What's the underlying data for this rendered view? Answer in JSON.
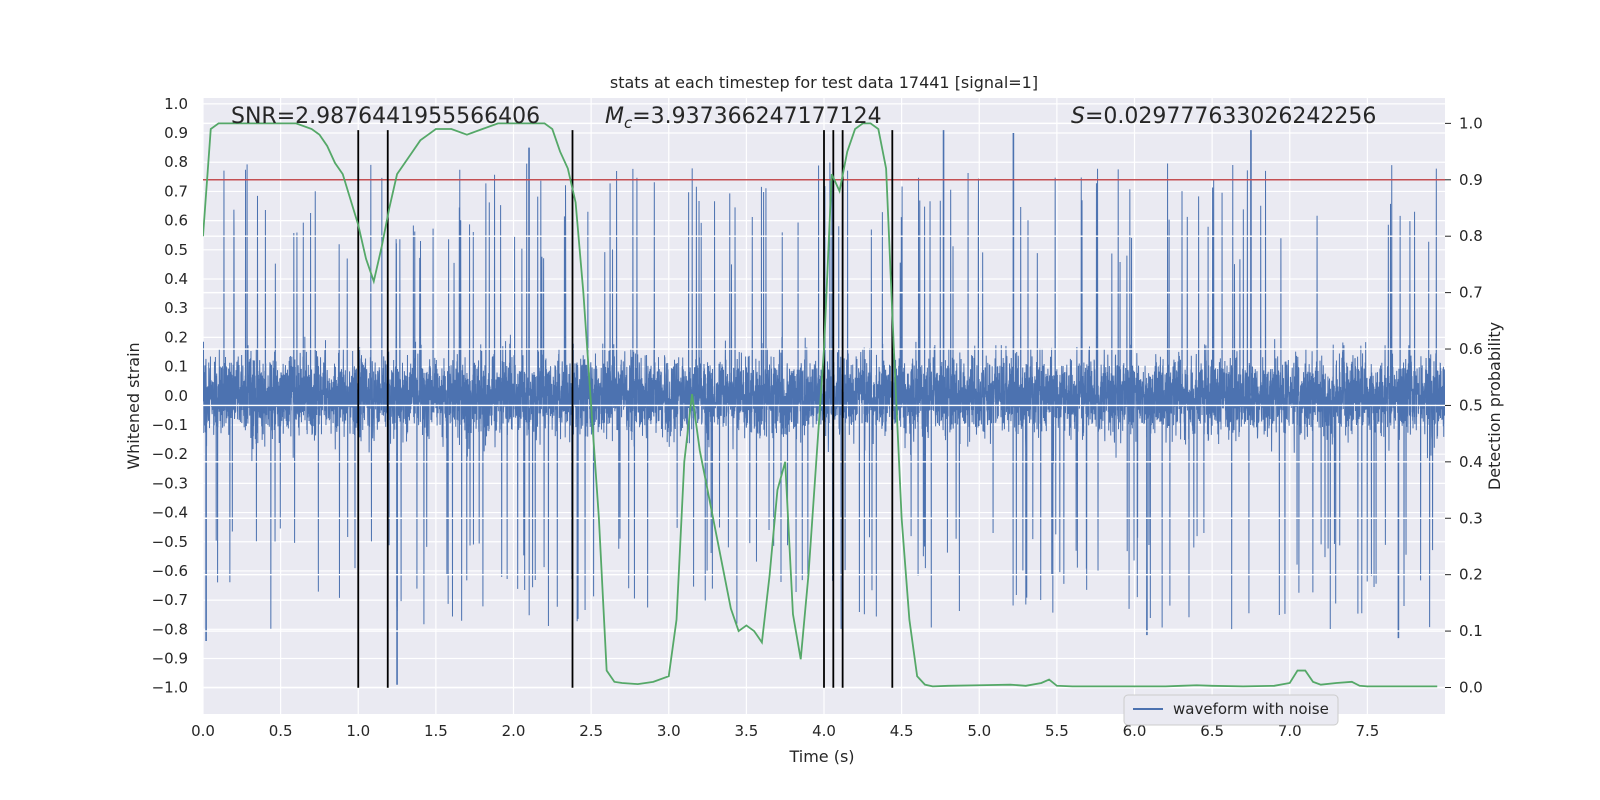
{
  "chart_data": {
    "type": "line",
    "title": "stats at each timestep for test data 17441 [signal=1]",
    "xlabel": "Time (s)",
    "ylabel_left": "Whitened strain",
    "ylabel_right": "Detection probability",
    "xlim": [
      0.0,
      8.0
    ],
    "ylim_left": [
      -1.09,
      1.02
    ],
    "ylim_right": [
      -0.047,
      1.045
    ],
    "grid": true,
    "x_ticks": [
      "0.0",
      "0.5",
      "1.0",
      "1.5",
      "2.0",
      "2.5",
      "3.0",
      "3.5",
      "4.0",
      "4.5",
      "5.0",
      "5.5",
      "6.0",
      "6.5",
      "7.0",
      "7.5"
    ],
    "x_tick_values": [
      0.0,
      0.5,
      1.0,
      1.5,
      2.0,
      2.5,
      3.0,
      3.5,
      4.0,
      4.5,
      5.0,
      5.5,
      6.0,
      6.5,
      7.0,
      7.5
    ],
    "y_left_ticks": [
      "1.0",
      "0.9",
      "0.8",
      "0.7",
      "0.6",
      "0.5",
      "0.4",
      "0.3",
      "0.2",
      "0.1",
      "0.0",
      "−0.1",
      "−0.2",
      "−0.3",
      "−0.4",
      "−0.5",
      "−0.6",
      "−0.7",
      "−0.8",
      "−0.9",
      "−1.0"
    ],
    "y_left_tick_values": [
      1.0,
      0.9,
      0.8,
      0.7,
      0.6,
      0.5,
      0.4,
      0.3,
      0.2,
      0.1,
      0.0,
      -0.1,
      -0.2,
      -0.3,
      -0.4,
      -0.5,
      -0.6,
      -0.7,
      -0.8,
      -0.9,
      -1.0
    ],
    "y_right_ticks": [
      "1.0",
      "0.9",
      "0.8",
      "0.7",
      "0.6",
      "0.5",
      "0.4",
      "0.3",
      "0.2",
      "0.1",
      "0.0"
    ],
    "y_right_tick_values": [
      1.0,
      0.9,
      0.8,
      0.7,
      0.6,
      0.5,
      0.4,
      0.3,
      0.2,
      0.1,
      0.0
    ],
    "annotations": {
      "snr": "SNR=2.9876441955566406",
      "mc_symbol": "M",
      "mc_sub": "c",
      "mc_value": "=3.937366247177124",
      "s_symbol": "S",
      "s_value": "=0.029777633026242256"
    },
    "threshold": {
      "axis": "right",
      "value": 0.9,
      "color": "#c44e52"
    },
    "vertical_markers": {
      "x": [
        1.0,
        1.19,
        2.38,
        4.0,
        4.06,
        4.12,
        4.44
      ],
      "y_range": [
        -1.0,
        0.91
      ],
      "color": "#000000"
    },
    "waveform": {
      "name": "waveform with noise",
      "color": "#4c72b0",
      "dense_band": [
        -0.42,
        0.45
      ],
      "n_samples": 8000,
      "seed": 17441,
      "notable_peaks": [
        {
          "x": 0.02,
          "y": -0.84
        },
        {
          "x": 1.25,
          "y": -0.99
        },
        {
          "x": 2.1,
          "y": 0.85
        },
        {
          "x": 4.77,
          "y": 0.91
        },
        {
          "x": 5.22,
          "y": 0.9
        },
        {
          "x": 6.75,
          "y": 0.91
        },
        {
          "x": 6.08,
          "y": -0.82
        },
        {
          "x": 7.7,
          "y": -0.83
        }
      ]
    },
    "probability_series": {
      "name": "detection probability",
      "color": "#55a868",
      "x": [
        0.0,
        0.05,
        0.1,
        0.2,
        0.3,
        0.4,
        0.5,
        0.6,
        0.7,
        0.75,
        0.8,
        0.85,
        0.9,
        1.0,
        1.05,
        1.1,
        1.15,
        1.2,
        1.25,
        1.3,
        1.35,
        1.4,
        1.45,
        1.5,
        1.6,
        1.7,
        1.8,
        1.9,
        2.0,
        2.1,
        2.2,
        2.25,
        2.3,
        2.35,
        2.4,
        2.45,
        2.5,
        2.55,
        2.6,
        2.65,
        2.7,
        2.8,
        2.9,
        3.0,
        3.05,
        3.1,
        3.15,
        3.2,
        3.25,
        3.3,
        3.35,
        3.4,
        3.45,
        3.5,
        3.55,
        3.6,
        3.65,
        3.7,
        3.75,
        3.8,
        3.85,
        3.9,
        3.95,
        4.0,
        4.05,
        4.1,
        4.15,
        4.2,
        4.25,
        4.3,
        4.35,
        4.4,
        4.45,
        4.5,
        4.55,
        4.6,
        4.65,
        4.7,
        4.8,
        5.0,
        5.2,
        5.3,
        5.4,
        5.45,
        5.5,
        5.6,
        5.8,
        6.0,
        6.2,
        6.3,
        6.4,
        6.5,
        6.7,
        6.9,
        7.0,
        7.05,
        7.1,
        7.15,
        7.2,
        7.3,
        7.4,
        7.45,
        7.5,
        7.7,
        7.95
      ],
      "y": [
        0.8,
        0.99,
        1.0,
        1.0,
        1.0,
        1.0,
        1.0,
        1.0,
        0.99,
        0.98,
        0.96,
        0.93,
        0.91,
        0.82,
        0.76,
        0.72,
        0.78,
        0.85,
        0.91,
        0.93,
        0.95,
        0.97,
        0.98,
        0.99,
        0.99,
        0.98,
        0.99,
        1.0,
        1.0,
        1.0,
        1.0,
        0.99,
        0.95,
        0.92,
        0.86,
        0.7,
        0.5,
        0.3,
        0.03,
        0.01,
        0.008,
        0.006,
        0.01,
        0.02,
        0.12,
        0.4,
        0.52,
        0.42,
        0.35,
        0.28,
        0.21,
        0.14,
        0.1,
        0.11,
        0.1,
        0.08,
        0.2,
        0.35,
        0.4,
        0.13,
        0.05,
        0.2,
        0.4,
        0.6,
        0.91,
        0.88,
        0.95,
        0.99,
        1.0,
        1.0,
        0.99,
        0.92,
        0.6,
        0.3,
        0.12,
        0.02,
        0.005,
        0.002,
        0.003,
        0.004,
        0.005,
        0.003,
        0.008,
        0.014,
        0.003,
        0.002,
        0.002,
        0.002,
        0.002,
        0.003,
        0.004,
        0.003,
        0.002,
        0.003,
        0.008,
        0.03,
        0.03,
        0.01,
        0.005,
        0.008,
        0.01,
        0.003,
        0.002,
        0.002,
        0.002
      ]
    },
    "legend": {
      "entries": [
        "waveform with noise"
      ],
      "placement": "lower-right"
    }
  }
}
